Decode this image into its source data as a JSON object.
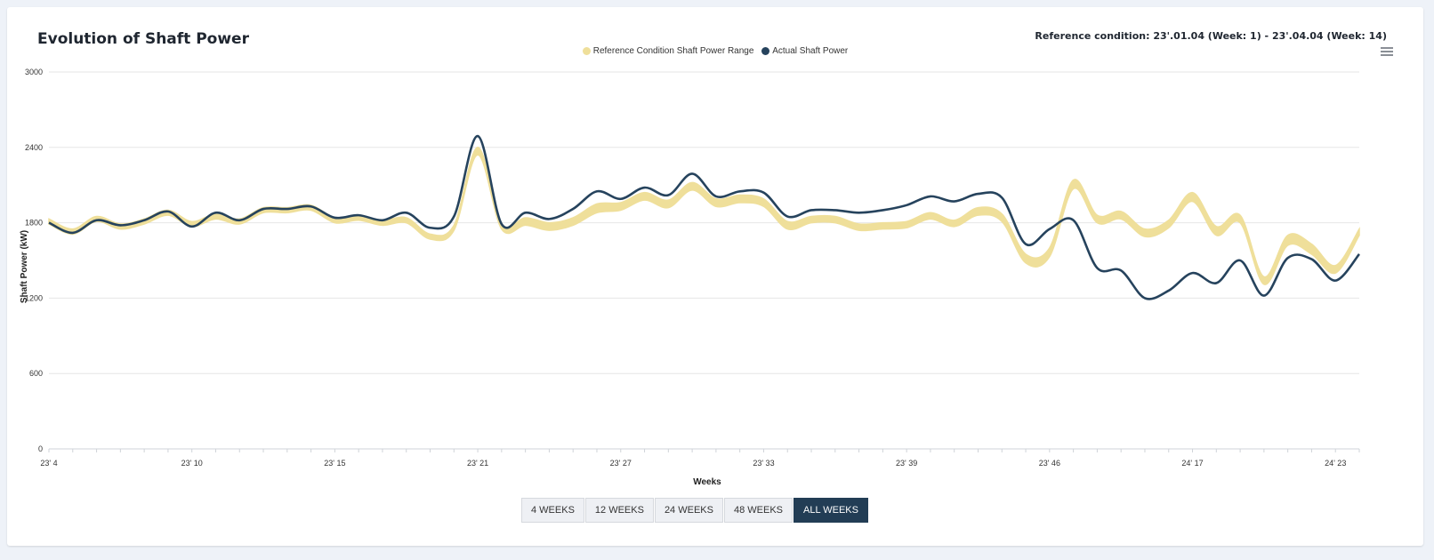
{
  "header": {
    "title": "Evolution of Shaft Power",
    "reference_condition": "Reference condition: 23'.01.04 (Week: 1) - 23'.04.04 (Week: 14)",
    "menu_icon": "hamburger-menu-icon"
  },
  "colors": {
    "reference_band": "#efdf9a",
    "actual_line": "#26435d",
    "active_button": "#223d55"
  },
  "legend": {
    "reference_label": "Reference Condition Shaft Power Range",
    "actual_label": "Actual Shaft Power"
  },
  "range_buttons": {
    "w4": "4 WEEKS",
    "w12": "12 WEEKS",
    "w24": "24 WEEKS",
    "w48": "48 WEEKS",
    "all": "ALL WEEKS",
    "active": "all"
  },
  "chart_data": {
    "type": "line",
    "title": "Evolution of Shaft Power",
    "xlabel": "Weeks",
    "ylabel": "Shaft Power (kW)",
    "ylim": [
      0,
      3000
    ],
    "yticks": [
      0,
      600,
      1200,
      1800,
      2400,
      3000
    ],
    "grid": true,
    "legend_position": "top-center",
    "x_tick_labels": [
      "23' 4",
      "23' 10",
      "23' 15",
      "23' 21",
      "23' 27",
      "23' 33",
      "23' 39",
      "23' 46",
      "24' 17",
      "24' 23"
    ],
    "series": [
      {
        "name": "Reference Condition Shaft Power Range",
        "kind": "range",
        "low": [
          1790,
          1710,
          1810,
          1750,
          1790,
          1860,
          1770,
          1830,
          1790,
          1880,
          1880,
          1900,
          1800,
          1820,
          1780,
          1800,
          1670,
          1740,
          2340,
          1750,
          1780,
          1740,
          1780,
          1880,
          1900,
          1980,
          1920,
          2060,
          1930,
          1960,
          1930,
          1750,
          1800,
          1800,
          1740,
          1750,
          1760,
          1830,
          1770,
          1860,
          1810,
          1480,
          1530,
          2070,
          1800,
          1830,
          1690,
          1760,
          1970,
          1700,
          1800,
          1310,
          1620,
          1550,
          1400,
          1700
        ],
        "high": [
          1830,
          1750,
          1850,
          1790,
          1830,
          1900,
          1810,
          1870,
          1830,
          1920,
          1920,
          1940,
          1840,
          1860,
          1820,
          1840,
          1710,
          1780,
          2400,
          1790,
          1840,
          1800,
          1840,
          1950,
          1960,
          2040,
          1980,
          2120,
          1990,
          2020,
          1990,
          1810,
          1850,
          1850,
          1790,
          1800,
          1810,
          1880,
          1820,
          1920,
          1870,
          1550,
          1600,
          2140,
          1860,
          1890,
          1750,
          1820,
          2040,
          1770,
          1860,
          1370,
          1700,
          1630,
          1460,
          1750
        ]
      },
      {
        "name": "Actual Shaft Power",
        "kind": "line",
        "values": [
          1800,
          1720,
          1820,
          1780,
          1820,
          1890,
          1770,
          1880,
          1820,
          1910,
          1910,
          1930,
          1840,
          1860,
          1820,
          1880,
          1760,
          1850,
          2490,
          1790,
          1880,
          1830,
          1910,
          2050,
          1990,
          2080,
          2020,
          2190,
          2010,
          2050,
          2040,
          1850,
          1900,
          1900,
          1880,
          1900,
          1940,
          2010,
          1970,
          2030,
          2000,
          1630,
          1750,
          1820,
          1440,
          1420,
          1200,
          1260,
          1400,
          1320,
          1500,
          1220,
          1520,
          1510,
          1340,
          1550
        ]
      }
    ]
  }
}
